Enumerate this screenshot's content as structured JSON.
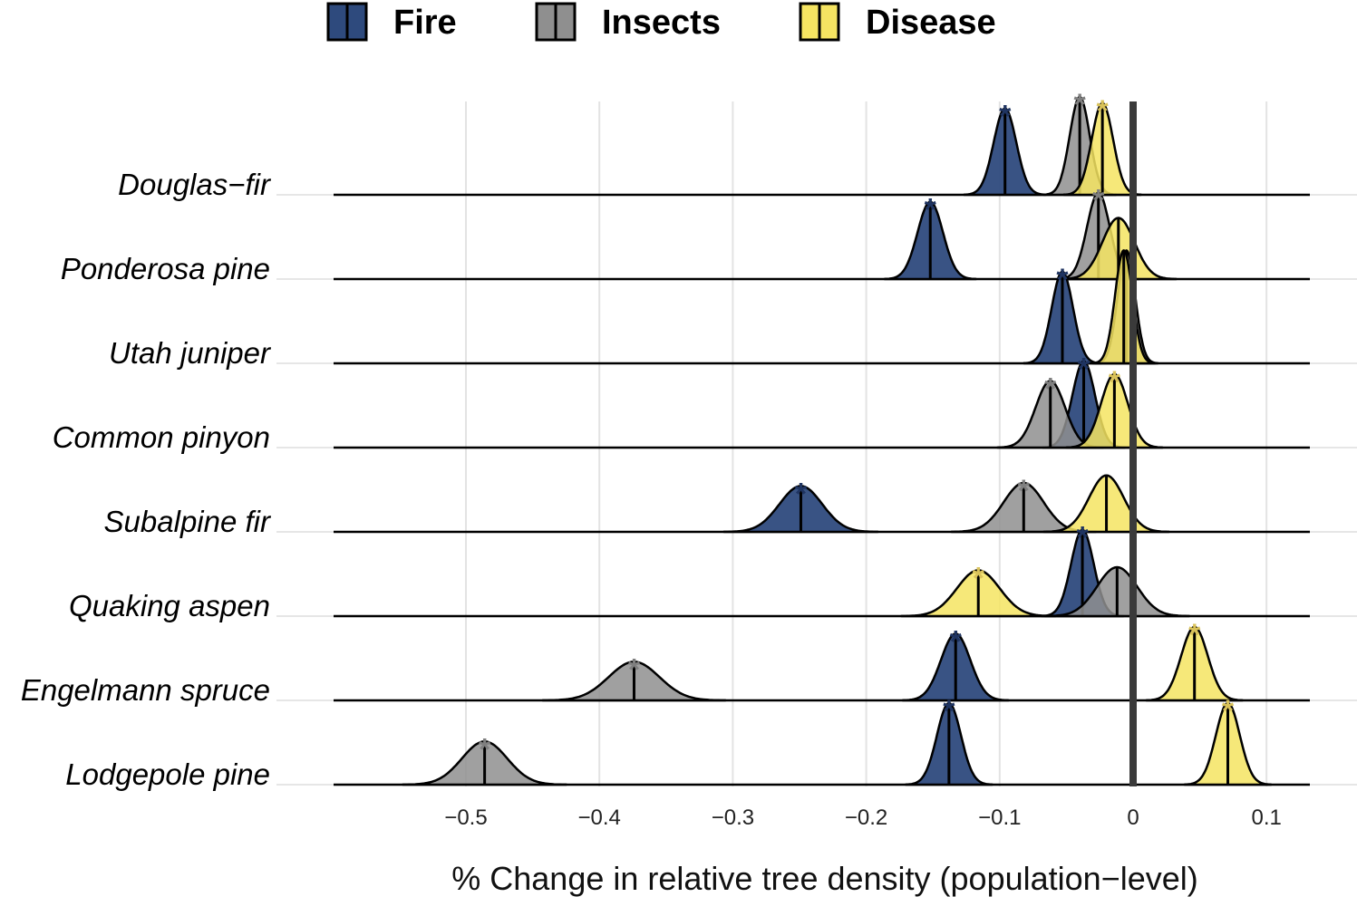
{
  "chart_data": {
    "type": "ridgeline",
    "xlabel": "% Change in relative tree density (population−level)",
    "xlim": [
      -0.6,
      0.13
    ],
    "x_ticks": [
      {
        "value": -0.5,
        "label": "−0.5"
      },
      {
        "value": -0.4,
        "label": "−0.4"
      },
      {
        "value": -0.3,
        "label": "−0.3"
      },
      {
        "value": -0.2,
        "label": "−0.2"
      },
      {
        "value": -0.1,
        "label": "−0.1"
      },
      {
        "value": 0,
        "label": "0"
      },
      {
        "value": 0.1,
        "label": "0.1"
      }
    ],
    "reference_line": 0,
    "legend": [
      {
        "key": "fire",
        "label": "Fire",
        "color": "#2e4a7d"
      },
      {
        "key": "insects",
        "label": "Insects",
        "color": "#8f8f8f"
      },
      {
        "key": "disease",
        "label": "Disease",
        "color": "#f5e462"
      }
    ],
    "star_colors": {
      "fire": "#1f3461",
      "insects": "#7f7f7f",
      "disease": "#d9c25a"
    },
    "species": [
      {
        "name": "Douglas−fir",
        "fire": {
          "mean": -0.096,
          "sd": 0.0085,
          "significant": true
        },
        "insects": {
          "mean": -0.04,
          "sd": 0.0075,
          "significant": true
        },
        "disease": {
          "mean": -0.023,
          "sd": 0.008,
          "significant": true
        }
      },
      {
        "name": "Ponderosa pine",
        "fire": {
          "mean": -0.152,
          "sd": 0.0095,
          "significant": true
        },
        "insects": {
          "mean": -0.026,
          "sd": 0.0085,
          "significant": true
        },
        "disease": {
          "mean": -0.011,
          "sd": 0.012,
          "significant": false
        }
      },
      {
        "name": "Utah juniper",
        "fire": {
          "mean": -0.053,
          "sd": 0.008,
          "significant": true
        },
        "insects": {
          "mean": -0.005,
          "sd": 0.0065,
          "significant": false
        },
        "disease": {
          "mean": -0.007,
          "sd": 0.0065,
          "significant": false
        }
      },
      {
        "name": "Common pinyon",
        "fire": {
          "mean": -0.037,
          "sd": 0.0085,
          "significant": true
        },
        "insects": {
          "mean": -0.062,
          "sd": 0.011,
          "significant": true
        },
        "disease": {
          "mean": -0.014,
          "sd": 0.01,
          "significant": true
        }
      },
      {
        "name": "Subalpine fir",
        "fire": {
          "mean": -0.249,
          "sd": 0.016,
          "significant": true
        },
        "insects": {
          "mean": -0.082,
          "sd": 0.015,
          "significant": true
        },
        "disease": {
          "mean": -0.02,
          "sd": 0.013,
          "significant": false
        }
      },
      {
        "name": "Quaking aspen",
        "fire": {
          "mean": -0.038,
          "sd": 0.0085,
          "significant": true
        },
        "insects": {
          "mean": -0.012,
          "sd": 0.015,
          "significant": false
        },
        "disease": {
          "mean": -0.116,
          "sd": 0.016,
          "significant": true
        }
      },
      {
        "name": "Engelmann spruce",
        "fire": {
          "mean": -0.133,
          "sd": 0.011,
          "significant": true
        },
        "insects": {
          "mean": -0.374,
          "sd": 0.019,
          "significant": true
        },
        "disease": {
          "mean": 0.046,
          "sd": 0.01,
          "significant": true
        }
      },
      {
        "name": "Lodgepole pine",
        "fire": {
          "mean": -0.138,
          "sd": 0.009,
          "significant": true
        },
        "insects": {
          "mean": -0.486,
          "sd": 0.017,
          "significant": true
        },
        "disease": {
          "mean": 0.071,
          "sd": 0.009,
          "significant": true
        }
      }
    ]
  }
}
